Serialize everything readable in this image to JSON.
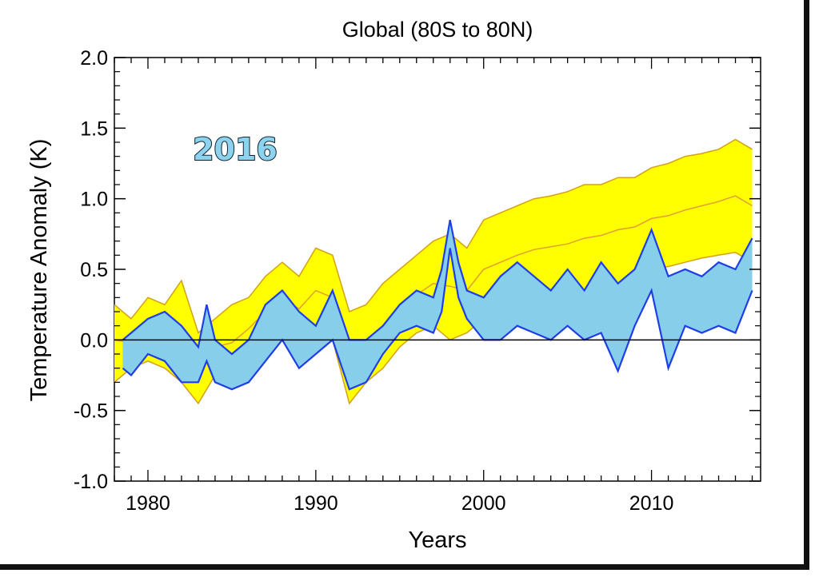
{
  "chart_data": {
    "type": "area",
    "title": "Global (80S to 80N)",
    "stamp_text": "2016",
    "xlabel": "Years",
    "ylabel": "Temperature Anomaly (K)",
    "xlim": [
      1978,
      2016.5
    ],
    "ylim": [
      -1.0,
      2.0
    ],
    "x_ticks": [
      1980,
      1990,
      2000,
      2010
    ],
    "x_tick_labels": [
      "1980",
      "1990",
      "2000",
      "2010"
    ],
    "y_ticks": [
      -1.0,
      -0.5,
      0.0,
      0.5,
      1.0,
      1.5,
      2.0
    ],
    "y_tick_labels": [
      "-1.0",
      "-0.5",
      "0.0",
      "0.5",
      "1.0",
      "1.5",
      "2.0"
    ],
    "zero_line": 0.0,
    "colors": {
      "model_band_fill": "#ffff00",
      "model_band_edge": "#d4a017",
      "model_midline": "#e0a030",
      "obs_band_fill": "#87ceeb",
      "obs_band_edge": "#1f3fe6",
      "zero_line": "#000000"
    },
    "series": [
      {
        "x": [
          1978.0,
          1979.0,
          1980.0,
          1981.0,
          1982.0,
          1983.0,
          1984.0,
          1985.0,
          1986.0,
          1987.0,
          1988.0,
          1989.0,
          1990.0,
          1991.0,
          1992.0,
          1993.0,
          1994.0,
          1995.0,
          1996.0,
          1997.0,
          1998.0,
          1999.0,
          2000.0,
          2001.0,
          2002.0,
          2003.0,
          2004.0,
          2005.0,
          2006.0,
          2007.0,
          2008.0,
          2009.0,
          2010.0,
          2011.0,
          2012.0,
          2013.0,
          2014.0,
          2015.0,
          2016.0
        ],
        "upper": [
          0.25,
          0.15,
          0.3,
          0.25,
          0.42,
          0.05,
          0.15,
          0.25,
          0.3,
          0.45,
          0.55,
          0.45,
          0.65,
          0.6,
          0.2,
          0.25,
          0.4,
          0.5,
          0.6,
          0.7,
          0.75,
          0.65,
          0.85,
          0.9,
          0.95,
          1.0,
          1.02,
          1.05,
          1.1,
          1.1,
          1.15,
          1.15,
          1.22,
          1.25,
          1.3,
          1.32,
          1.35,
          1.42,
          1.35
        ],
        "lower": [
          -0.3,
          -0.2,
          -0.15,
          -0.2,
          -0.3,
          -0.45,
          -0.25,
          -0.3,
          -0.15,
          -0.05,
          0.05,
          0.0,
          0.05,
          0.0,
          -0.45,
          -0.3,
          -0.2,
          -0.05,
          0.05,
          0.1,
          0.0,
          0.05,
          0.15,
          0.2,
          0.25,
          0.28,
          0.3,
          0.32,
          0.35,
          0.38,
          0.4,
          0.45,
          0.5,
          0.52,
          0.55,
          0.58,
          0.6,
          0.62,
          0.55
        ],
        "mid": [
          0.0,
          -0.02,
          0.08,
          0.05,
          0.1,
          -0.2,
          -0.05,
          -0.02,
          0.08,
          0.2,
          0.3,
          0.22,
          0.35,
          0.3,
          -0.12,
          -0.02,
          0.1,
          0.22,
          0.32,
          0.4,
          0.38,
          0.35,
          0.5,
          0.55,
          0.6,
          0.64,
          0.66,
          0.68,
          0.72,
          0.74,
          0.78,
          0.8,
          0.86,
          0.88,
          0.92,
          0.95,
          0.98,
          1.02,
          0.95
        ]
      },
      {
        "x": [
          1978.5,
          1979.0,
          1980.0,
          1981.0,
          1982.0,
          1983.0,
          1983.5,
          1984.0,
          1985.0,
          1986.0,
          1987.0,
          1988.0,
          1989.0,
          1990.0,
          1991.0,
          1992.0,
          1993.0,
          1994.0,
          1995.0,
          1996.0,
          1997.0,
          1997.5,
          1998.0,
          1998.5,
          1999.0,
          2000.0,
          2001.0,
          2002.0,
          2003.0,
          2004.0,
          2005.0,
          2006.0,
          2007.0,
          2008.0,
          2009.0,
          2010.0,
          2011.0,
          2012.0,
          2013.0,
          2014.0,
          2015.0,
          2016.0
        ],
        "upper": [
          0.0,
          0.05,
          0.15,
          0.2,
          0.1,
          -0.05,
          0.25,
          0.0,
          -0.1,
          0.0,
          0.25,
          0.35,
          0.2,
          0.1,
          0.35,
          0.0,
          0.0,
          0.1,
          0.25,
          0.35,
          0.3,
          0.5,
          0.85,
          0.55,
          0.35,
          0.3,
          0.45,
          0.55,
          0.45,
          0.35,
          0.5,
          0.35,
          0.55,
          0.4,
          0.5,
          0.78,
          0.45,
          0.5,
          0.45,
          0.55,
          0.5,
          0.72
        ],
        "lower": [
          -0.2,
          -0.25,
          -0.1,
          -0.15,
          -0.3,
          -0.3,
          -0.15,
          -0.3,
          -0.35,
          -0.3,
          -0.15,
          0.0,
          -0.2,
          -0.1,
          0.0,
          -0.35,
          -0.3,
          -0.1,
          0.05,
          0.1,
          0.05,
          0.2,
          0.65,
          0.3,
          0.15,
          0.0,
          0.0,
          0.1,
          0.05,
          0.0,
          0.1,
          0.0,
          0.05,
          -0.22,
          0.1,
          0.35,
          -0.2,
          0.1,
          0.05,
          0.1,
          0.05,
          0.35
        ]
      }
    ]
  }
}
